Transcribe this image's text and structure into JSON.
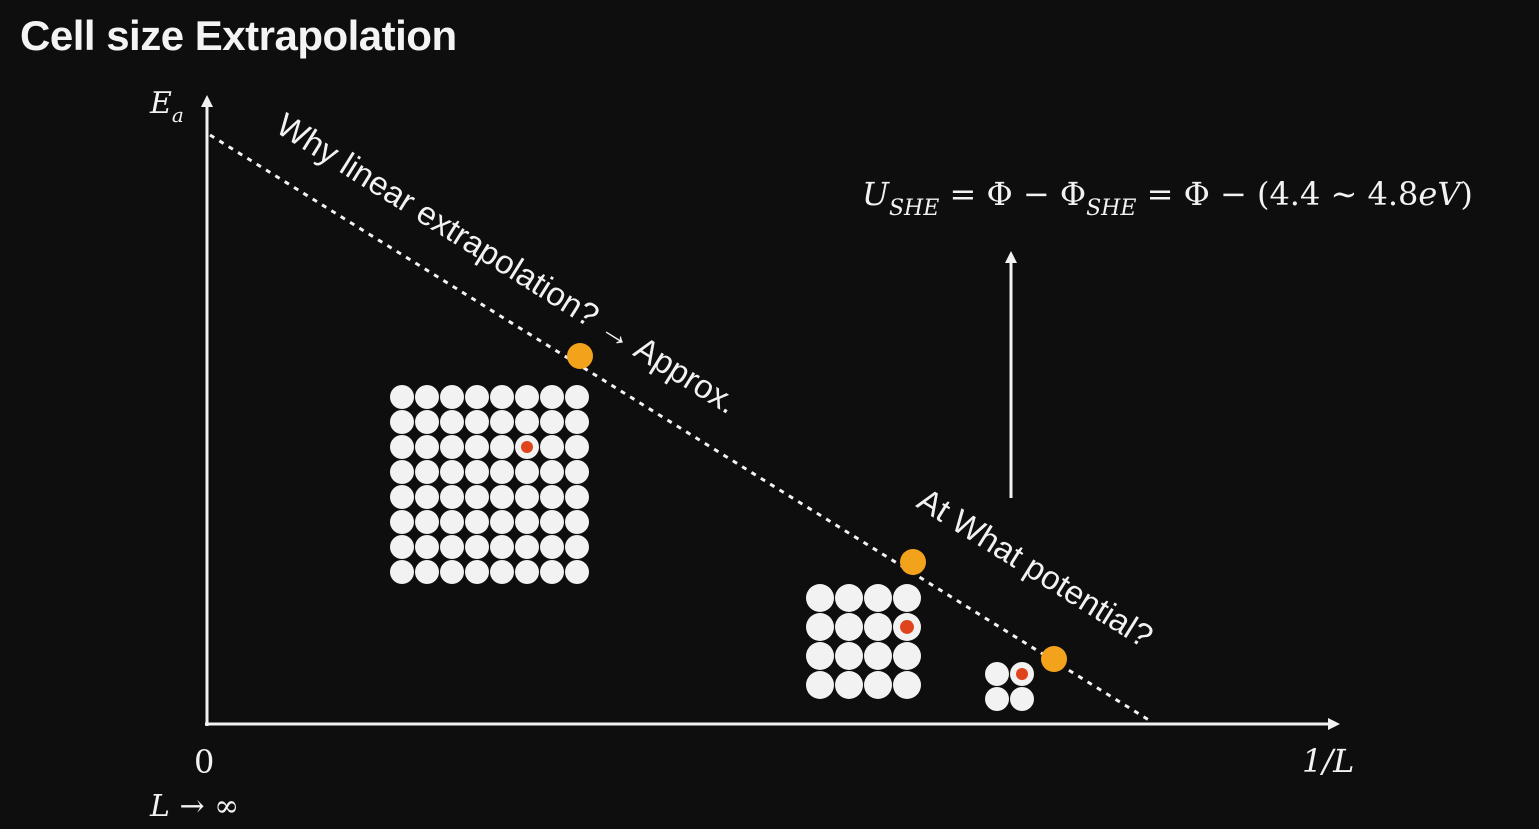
{
  "title": "Cell size Extrapolation",
  "axes": {
    "y_label": "E",
    "y_label_sub": "a",
    "x_label": "1/L",
    "origin_label": "0",
    "origin_limit": "L → ∞"
  },
  "annotations": {
    "line_question": "Why linear extrapolation? → Approx.",
    "potential_question": "At What potential?"
  },
  "equation": {
    "U": "U",
    "U_sub": "SHE",
    "part1": " = Φ − Φ",
    "phi_sub": "SHE",
    "part2": " = Φ − (4.4 ∼ 4.8",
    "unit": "eV",
    "close": ")"
  },
  "colors": {
    "background": "#0e0e0e",
    "foreground": "#f2f2f2",
    "data_point": "#f3a21c",
    "defect_atom": "#e0441c"
  },
  "supercells": [
    {
      "size": 8,
      "defect_row": 2,
      "defect_col": 5
    },
    {
      "size": 4,
      "defect_row": 1,
      "defect_col": 3
    },
    {
      "size": 2,
      "defect_row": 0,
      "defect_col": 1
    }
  ]
}
